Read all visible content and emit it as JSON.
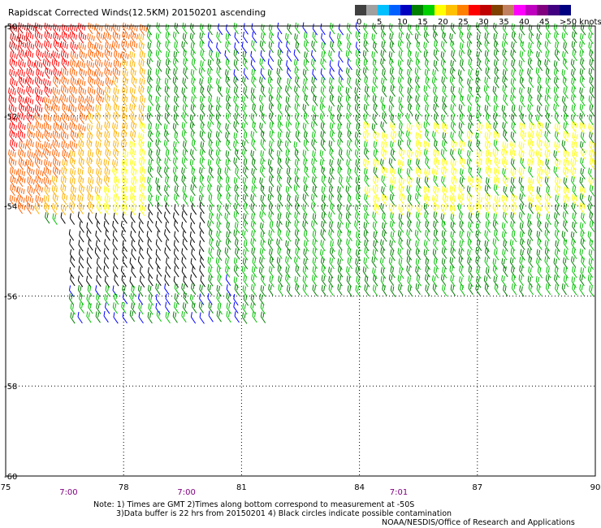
{
  "title": "Rapidscat Corrected Winds(12.5KM) 20150201 ascending",
  "legend": {
    "colors": [
      "#404040",
      "#a0a0a0",
      "#00c0ff",
      "#0060ff",
      "#0000c0",
      "#008000",
      "#00d000",
      "#ffff00",
      "#ffc000",
      "#ff8000",
      "#ff0000",
      "#c00000",
      "#804000",
      "#c08060",
      "#ff00ff",
      "#c000c0",
      "#800080",
      "#400080",
      "#000080"
    ],
    "labels": [
      "0",
      "5",
      "10",
      "15",
      "20",
      "25",
      "30",
      "35",
      "40",
      "45",
      ">50 knots"
    ]
  },
  "chart_data": {
    "type": "wind-barb-map",
    "title": "Rapidscat Corrected Winds(12.5KM) 20150201 ascending",
    "xlim": [
      75,
      90
    ],
    "ylim": [
      -60,
      -50
    ],
    "x_ticks": [
      "75",
      "78",
      "81",
      "84",
      "87",
      "90"
    ],
    "y_ticks": [
      "-50",
      "-52",
      "-54",
      "-56",
      "-58",
      "-60"
    ],
    "time_labels": [
      {
        "x": 76.6,
        "text": "7:00"
      },
      {
        "x": 79.6,
        "text": "7:00"
      },
      {
        "x": 85.0,
        "text": "7:01"
      }
    ],
    "speed_colors": {
      "0-5": "#000000",
      "10-15": "#0000ff",
      "15-20": "#008000",
      "20-25": "#00c000",
      "25-30": "#ffff00",
      "30-35": "#ffb000",
      "35-40": "#ff6000",
      "40-45": "#ff0000",
      "45-50": "#c00000"
    },
    "regions": [
      {
        "name": "strong-west",
        "lon": [
          75,
          78.5
        ],
        "lat": [
          -54.2,
          -50
        ],
        "speed_knots": [
          25,
          45
        ]
      },
      {
        "name": "calm-band",
        "lon": [
          76.3,
          80.5
        ],
        "lat": [
          -56.6,
          -53.4
        ],
        "speed_knots": [
          0,
          10
        ]
      },
      {
        "name": "moderate-east",
        "lon": [
          78,
          90
        ],
        "lat": [
          -57,
          -50
        ],
        "speed_knots": [
          15,
          25
        ]
      },
      {
        "name": "yellow-streak",
        "lon": [
          84,
          90
        ],
        "lat": [
          -54.2,
          -52.2
        ],
        "speed_knots": [
          25,
          30
        ]
      }
    ]
  },
  "notes": {
    "line1": "Note: 1) Times are GMT 2)Times along bottom correspond to measurement at -50S",
    "line2": "3)Data buffer is 22 hrs from 20150201 4) Black circles indicate possible contamination",
    "line3": "NOAA/NESDIS/Office of Research and Applications"
  }
}
